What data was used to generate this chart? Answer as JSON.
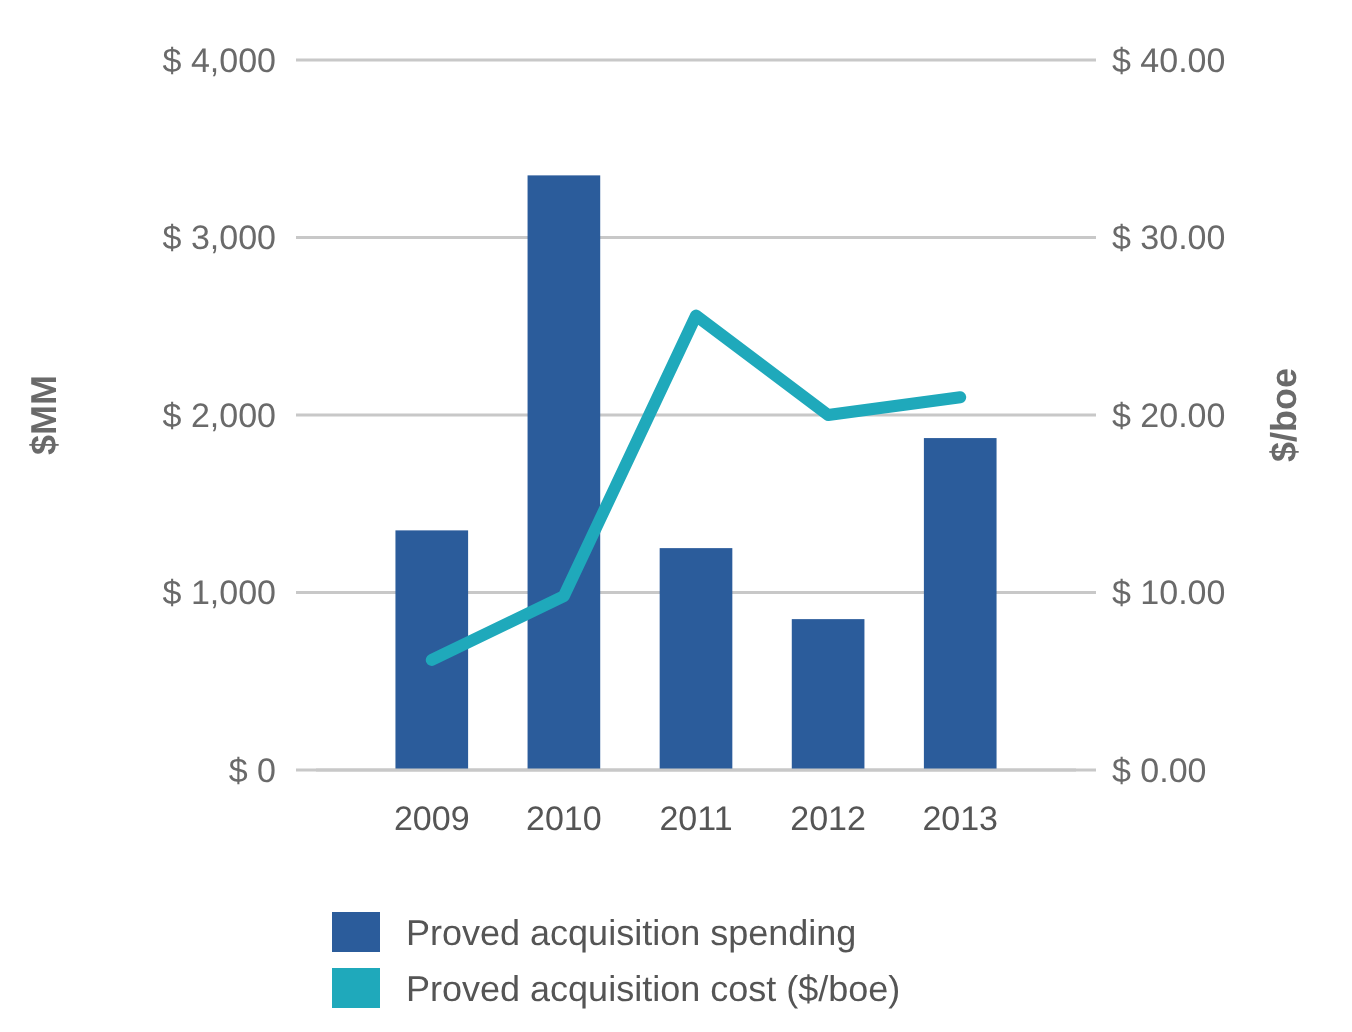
{
  "chart_data": {
    "type": "bar",
    "ylabel": "$MM",
    "y2label": "$/boe",
    "categories": [
      "2009",
      "2010",
      "2011",
      "2012",
      "2013"
    ],
    "series": [
      {
        "name": "Proved acquisition spending",
        "color": "#2b5c9b",
        "values": [
          1350,
          3350,
          1250,
          850,
          1870
        ]
      },
      {
        "name": "Proved acquisition cost ($/boe)",
        "type": "line",
        "axis": "y2",
        "color": "#1fa9bb",
        "values": [
          6.2,
          9.8,
          25.6,
          20,
          21
        ]
      }
    ],
    "ylim": [
      0,
      4000
    ],
    "yticks": [
      {
        "value": 0,
        "label": "$ 0"
      },
      {
        "value": 1000,
        "label": "$ 1,000"
      },
      {
        "value": 2000,
        "label": "$ 2,000"
      },
      {
        "value": 3000,
        "label": "$ 3,000"
      },
      {
        "value": 4000,
        "label": "$ 4,000"
      }
    ],
    "y2lim": [
      0,
      40
    ],
    "y2ticks": [
      {
        "value": 0,
        "label": "$ 0.00"
      },
      {
        "value": 10,
        "label": "$ 10.00"
      },
      {
        "value": 20,
        "label": "$ 20.00"
      },
      {
        "value": 30,
        "label": "$ 30.00"
      },
      {
        "value": 40,
        "label": "$ 40.00"
      }
    ],
    "grid": "y",
    "legend": "bottom",
    "marker": "none",
    "line_style": "solid"
  }
}
